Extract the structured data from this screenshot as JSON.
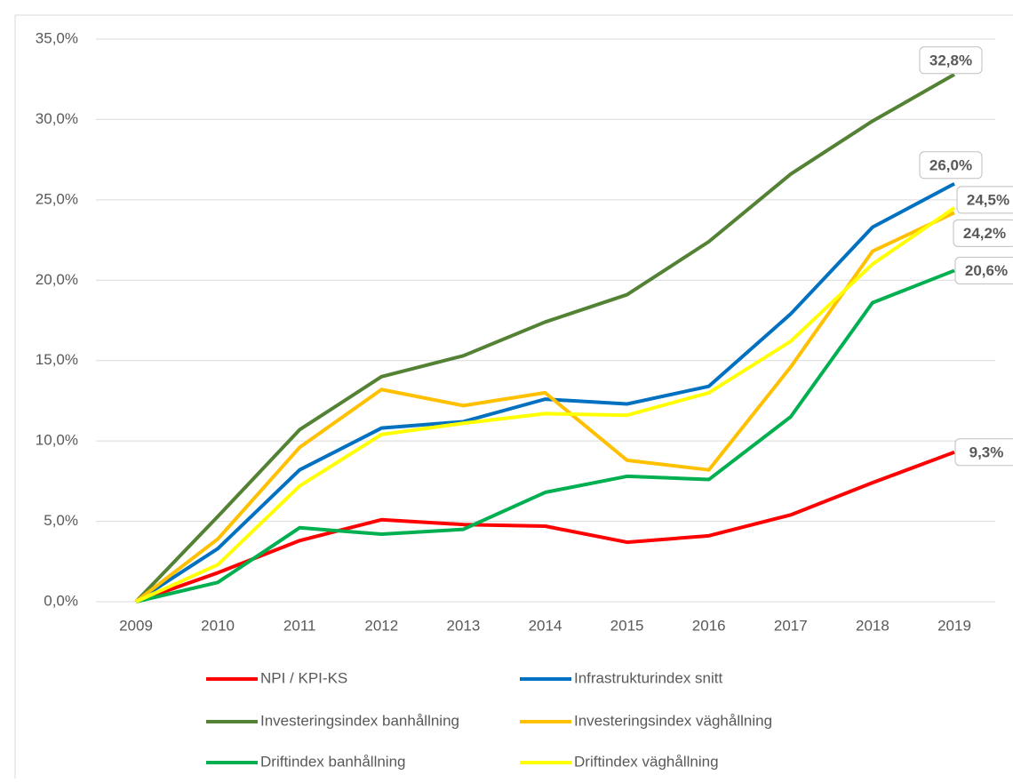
{
  "chart_data": {
    "type": "line",
    "categories": [
      "2009",
      "2010",
      "2011",
      "2012",
      "2013",
      "2014",
      "2015",
      "2016",
      "2017",
      "2018",
      "2019"
    ],
    "ylim": [
      0,
      35
    ],
    "yticks": [
      {
        "value": 0,
        "label": "0,0%"
      },
      {
        "value": 5,
        "label": "5,0%"
      },
      {
        "value": 10,
        "label": "10,0%"
      },
      {
        "value": 15,
        "label": "15,0%"
      },
      {
        "value": 20,
        "label": "20,0%"
      },
      {
        "value": 25,
        "label": "25,0%"
      },
      {
        "value": 30,
        "label": "30,0%"
      },
      {
        "value": 35,
        "label": "35,0%"
      }
    ],
    "grid": true,
    "legend": "bottom",
    "series": [
      {
        "name": "NPI / KPI-KS",
        "color": "#ff0000",
        "values": [
          0,
          1.8,
          3.8,
          5.1,
          4.8,
          4.7,
          3.7,
          4.1,
          5.4,
          7.4,
          9.3
        ],
        "value_labels": [
          null,
          null,
          null,
          null,
          null,
          null,
          null,
          null,
          null,
          null,
          "9,3%"
        ]
      },
      {
        "name": "Infrastrukturindex snitt",
        "color": "#0070c0",
        "values": [
          0,
          3.3,
          8.2,
          10.8,
          11.2,
          12.6,
          12.3,
          13.4,
          17.9,
          23.3,
          26.0
        ],
        "value_labels": [
          null,
          null,
          null,
          null,
          null,
          null,
          null,
          null,
          null,
          null,
          "26,0%"
        ]
      },
      {
        "name": "Investeringsindex banhållning",
        "color": "#548235",
        "values": [
          0,
          5.3,
          10.7,
          14.0,
          15.3,
          17.4,
          19.1,
          22.4,
          26.6,
          29.9,
          32.8
        ],
        "value_labels": [
          null,
          null,
          null,
          null,
          null,
          null,
          null,
          null,
          null,
          null,
          "32,8%"
        ]
      },
      {
        "name": "Investeringsindex väghållning",
        "color": "#ffc000",
        "values": [
          0,
          3.9,
          9.6,
          13.2,
          12.2,
          13.0,
          8.8,
          8.2,
          14.6,
          21.8,
          24.2
        ],
        "value_labels": [
          null,
          null,
          null,
          null,
          null,
          null,
          null,
          null,
          null,
          null,
          "24,2%"
        ]
      },
      {
        "name": "Driftindex banhållning",
        "color": "#00b050",
        "values": [
          0,
          1.2,
          4.6,
          4.2,
          4.5,
          6.8,
          7.8,
          7.6,
          11.5,
          18.6,
          20.6
        ],
        "value_labels": [
          null,
          null,
          null,
          null,
          null,
          null,
          null,
          null,
          null,
          null,
          "20,6%"
        ]
      },
      {
        "name": "Driftindex väghållning",
        "color": "#ffff00",
        "values": [
          0,
          2.3,
          7.2,
          10.4,
          11.1,
          11.7,
          11.6,
          13.0,
          16.2,
          21.0,
          24.5
        ],
        "value_labels": [
          null,
          null,
          null,
          null,
          null,
          null,
          null,
          null,
          null,
          null,
          "24,5%"
        ]
      }
    ]
  }
}
